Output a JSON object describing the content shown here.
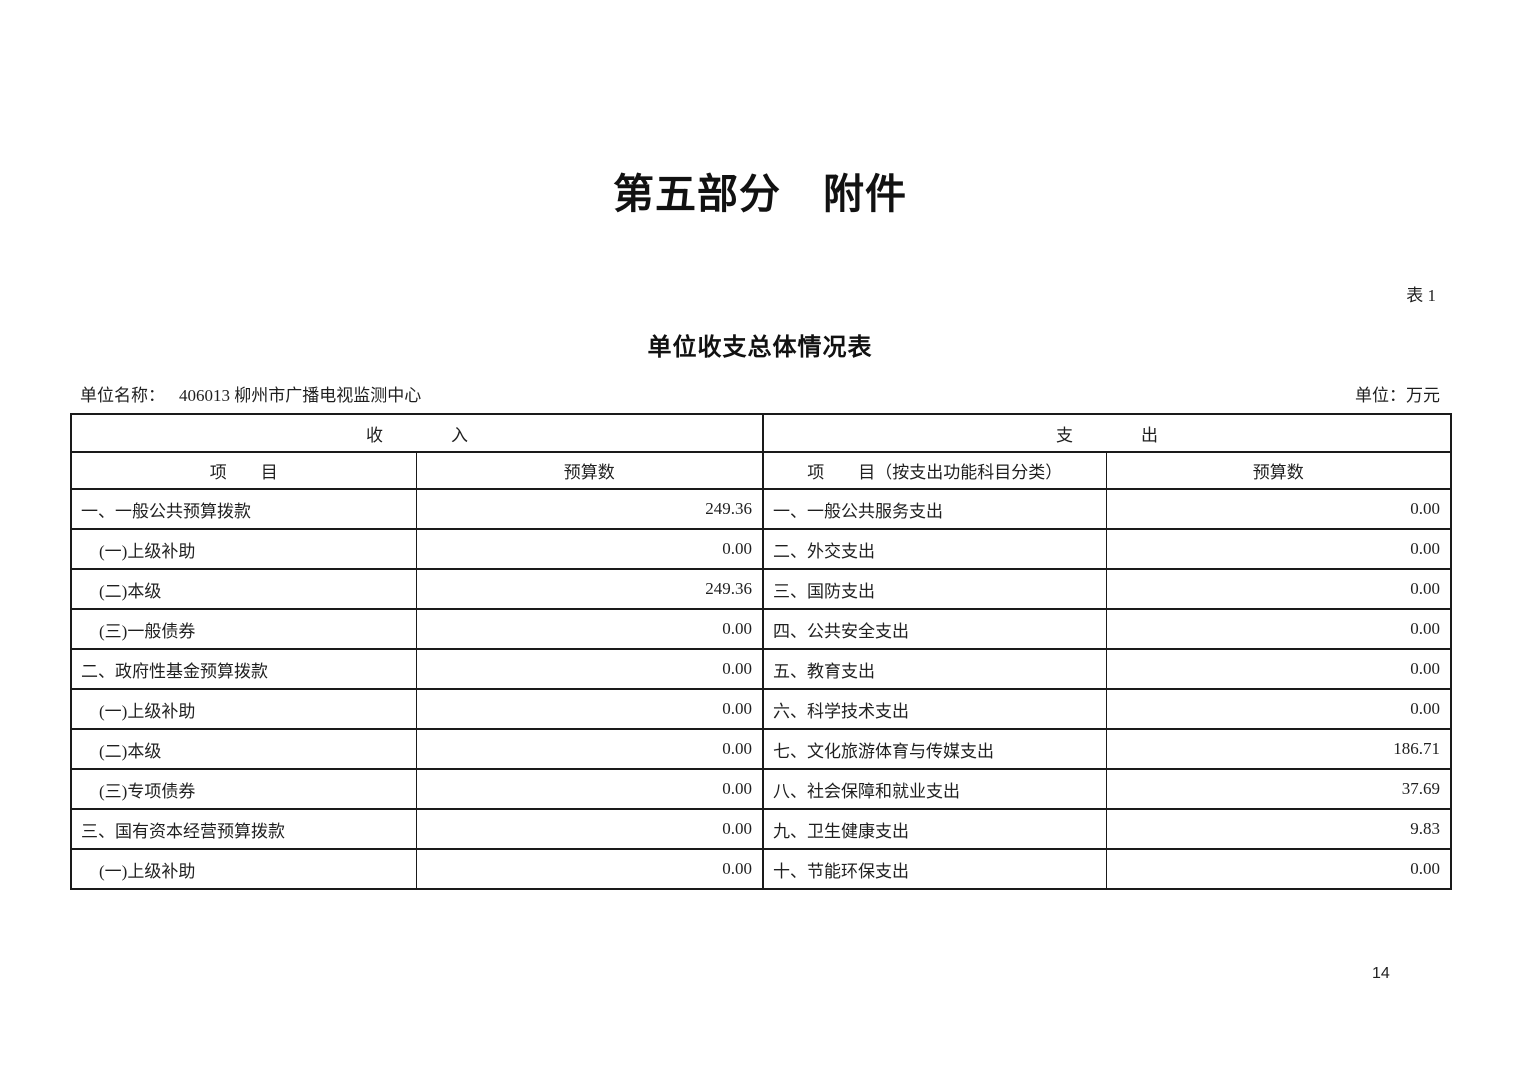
{
  "page": {
    "main_title": "第五部分　附件",
    "table_label": "表 1",
    "table_title": "单位收支总体情况表",
    "unit_name_label": "单位名称：",
    "unit_name_value": "406013 柳州市广播电视监测中心",
    "currency_unit_label": "单位：万元",
    "page_number": "14"
  },
  "table": {
    "income_header": "收　　　　入",
    "expense_header": "支　　　　出",
    "income_item_header": "项　　目",
    "income_value_header": "预算数",
    "expense_item_header": "项　　目（按支出功能科目分类）",
    "expense_value_header": "预算数",
    "rows": [
      {
        "income_item": "一、一般公共预算拨款",
        "income_value": "249.36",
        "expense_item": "一、一般公共服务支出",
        "expense_value": "0.00"
      },
      {
        "income_item": "(一)上级补助",
        "income_value": "0.00",
        "expense_item": "二、外交支出",
        "expense_value": "0.00"
      },
      {
        "income_item": "(二)本级",
        "income_value": "249.36",
        "expense_item": "三、国防支出",
        "expense_value": "0.00"
      },
      {
        "income_item": "(三)一般债券",
        "income_value": "0.00",
        "expense_item": "四、公共安全支出",
        "expense_value": "0.00"
      },
      {
        "income_item": "二、政府性基金预算拨款",
        "income_value": "0.00",
        "expense_item": "五、教育支出",
        "expense_value": "0.00"
      },
      {
        "income_item": "(一)上级补助",
        "income_value": "0.00",
        "expense_item": "六、科学技术支出",
        "expense_value": "0.00"
      },
      {
        "income_item": "(二)本级",
        "income_value": "0.00",
        "expense_item": "七、文化旅游体育与传媒支出",
        "expense_value": "186.71"
      },
      {
        "income_item": "(三)专项债券",
        "income_value": "0.00",
        "expense_item": "八、社会保障和就业支出",
        "expense_value": "37.69"
      },
      {
        "income_item": "三、国有资本经营预算拨款",
        "income_value": "0.00",
        "expense_item": "九、卫生健康支出",
        "expense_value": "9.83"
      },
      {
        "income_item": "(一)上级补助",
        "income_value": "0.00",
        "expense_item": "十、节能环保支出",
        "expense_value": "0.00"
      }
    ]
  },
  "colors": {
    "text": "#1f1f1f",
    "border": "#1a1a1a",
    "background": "#ffffff"
  }
}
